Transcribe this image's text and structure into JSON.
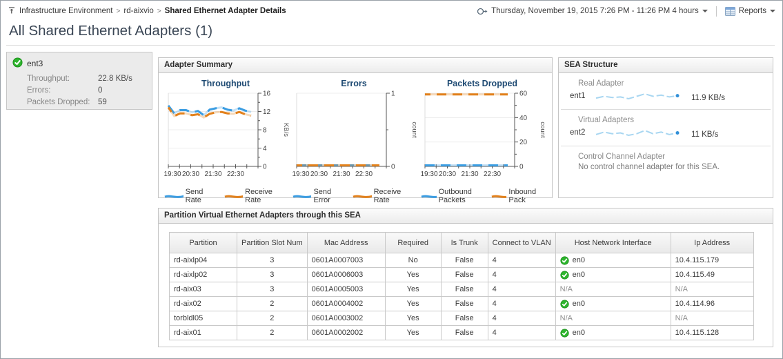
{
  "page": {
    "title": "All Shared Ethernet Adapters (1)",
    "breadcrumb": [
      "Infrastructure Environment",
      "rd-aixvio",
      "Shared Ethernet Adapter Details"
    ],
    "time_range_label": "Thursday, November 19, 2015 7:26 PM - 11:26 PM 4 hours",
    "reports_label": "Reports"
  },
  "adapter_card": {
    "name": "ent3",
    "metrics": [
      {
        "label": "Throughput:",
        "value": "22.8 KB/s"
      },
      {
        "label": "Errors:",
        "value": "0"
      },
      {
        "label": "Packets Dropped:",
        "value": "59"
      }
    ]
  },
  "adapter_summary": {
    "title": "Adapter Summary"
  },
  "chart_data": [
    {
      "type": "line",
      "title": "Throughput",
      "ylabel": "KB/s",
      "ylim": [
        0,
        16
      ],
      "yticks": [
        0,
        4,
        8,
        12,
        16
      ],
      "x_labels": [
        "19:30",
        "20:30",
        "21:30",
        "22:30"
      ],
      "grid": true,
      "legend_position": "bottom",
      "series": [
        {
          "name": "Send Rate",
          "color": "#3b9de2",
          "values": [
            13.3,
            11.6,
            12.3,
            12.3,
            11.8,
            12.1,
            11.2,
            12.4,
            12.7,
            12.9,
            12.4,
            12.2,
            12.7,
            12.2,
            11.9
          ]
        },
        {
          "name": "Receive Rate",
          "color": "#e2811c",
          "values": [
            12.9,
            11.0,
            11.6,
            11.6,
            11.2,
            11.4,
            10.7,
            11.5,
            11.8,
            11.9,
            11.6,
            11.5,
            11.9,
            11.4,
            11.1
          ]
        }
      ]
    },
    {
      "type": "line",
      "title": "Errors",
      "ylabel": "count",
      "ylim": [
        0,
        1
      ],
      "yticks": [
        0,
        1
      ],
      "x_labels": [
        "19:30",
        "20:30",
        "21:30",
        "22:30"
      ],
      "grid": true,
      "legend_position": "bottom",
      "series": [
        {
          "name": "Send Error",
          "color": "#3b9de2",
          "values": [
            0,
            0,
            0,
            0,
            0,
            0,
            0,
            0,
            0,
            0,
            0,
            0,
            0,
            0,
            0
          ]
        },
        {
          "name": "Receive Rate",
          "color": "#e2811c",
          "values": [
            0,
            0,
            0,
            0,
            0,
            0,
            0,
            0,
            0,
            0,
            0,
            0,
            0,
            0,
            0
          ]
        }
      ]
    },
    {
      "type": "line",
      "title": "Packets Dropped",
      "ylabel": "count",
      "ylim": [
        0,
        60
      ],
      "yticks": [
        0,
        20,
        40,
        60
      ],
      "x_labels": [
        "19:30",
        "20:30",
        "21:30",
        "22:30"
      ],
      "grid": true,
      "legend_position": "bottom",
      "series": [
        {
          "name": "Outbound Packets",
          "color": "#3b9de2",
          "values": [
            0.5,
            0.5,
            0.5,
            0.5,
            0.5,
            0.5,
            0.5,
            0.5,
            0.5,
            0.5,
            0.5,
            0.5,
            0.5,
            0.5,
            0.5
          ]
        },
        {
          "name": "Inbound Pack",
          "color": "#e2811c",
          "values": [
            59,
            59,
            59,
            59,
            59,
            59,
            59,
            59,
            59,
            59,
            59,
            59,
            59,
            59,
            59
          ]
        }
      ]
    }
  ],
  "sea_structure": {
    "title": "SEA Structure",
    "sections": [
      {
        "label": "Real Adapter",
        "adapter": "ent1",
        "value": "11.9 KB/s",
        "trend": [
          11.6,
          11.9,
          11.7,
          11.8,
          11.5,
          11.9,
          12.3,
          11.9,
          12.1,
          11.8,
          12.0
        ]
      },
      {
        "label": "Virtual Adapters",
        "adapter": "ent2",
        "value": "11 KB/s",
        "trend": [
          10.9,
          11.2,
          11.0,
          11.1,
          10.8,
          11.0,
          11.4,
          11.0,
          11.2,
          10.9,
          11.1
        ]
      },
      {
        "label": "Control Channel Adapter",
        "note": "No control channel adapter for this SEA."
      }
    ]
  },
  "partition_table": {
    "title": "Partition Virtual Ethernet Adapters through this SEA",
    "columns": [
      "Partition",
      "Partition Slot Num",
      "Mac Address",
      "Required",
      "Is Trunk",
      "Connect to VLAN",
      "Host Network Interface",
      "Ip Address"
    ],
    "rows": [
      {
        "partition": "rd-aixlp04",
        "slot": "3",
        "mac": "0601A0007003",
        "required": "No",
        "is_trunk": "False",
        "vlan": "4",
        "host_if": "en0",
        "host_if_ok": true,
        "ip": "10.4.115.179"
      },
      {
        "partition": "rd-aixlp02",
        "slot": "3",
        "mac": "0601A0006003",
        "required": "Yes",
        "is_trunk": "False",
        "vlan": "4",
        "host_if": "en0",
        "host_if_ok": true,
        "ip": "10.4.115.49"
      },
      {
        "partition": "rd-aix03",
        "slot": "3",
        "mac": "0601A0005003",
        "required": "Yes",
        "is_trunk": "False",
        "vlan": "4",
        "host_if": "N/A",
        "host_if_ok": false,
        "ip": "N/A"
      },
      {
        "partition": "rd-aix02",
        "slot": "2",
        "mac": "0601A0004002",
        "required": "Yes",
        "is_trunk": "False",
        "vlan": "4",
        "host_if": "en0",
        "host_if_ok": true,
        "ip": "10.4.114.96"
      },
      {
        "partition": "torbldl05",
        "slot": "2",
        "mac": "0601A0003002",
        "required": "Yes",
        "is_trunk": "False",
        "vlan": "4",
        "host_if": "N/A",
        "host_if_ok": false,
        "ip": "N/A"
      },
      {
        "partition": "rd-aix01",
        "slot": "2",
        "mac": "0601A0002002",
        "required": "Yes",
        "is_trunk": "False",
        "vlan": "4",
        "host_if": "en0",
        "host_if_ok": true,
        "ip": "10.4.115.128"
      }
    ]
  },
  "colors": {
    "blue": "#3b9de2",
    "orange": "#e2811c",
    "spark_line": "#9fd2ef",
    "spark_dot": "#3290d8",
    "status_green": "#2db52d"
  }
}
